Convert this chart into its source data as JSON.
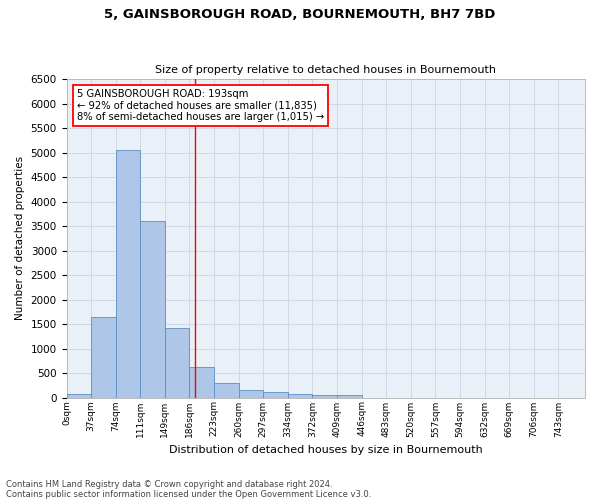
{
  "title": "5, GAINSBOROUGH ROAD, BOURNEMOUTH, BH7 7BD",
  "subtitle": "Size of property relative to detached houses in Bournemouth",
  "xlabel": "Distribution of detached houses by size in Bournemouth",
  "ylabel": "Number of detached properties",
  "footer_line1": "Contains HM Land Registry data © Crown copyright and database right 2024.",
  "footer_line2": "Contains public sector information licensed under the Open Government Licence v3.0.",
  "bin_labels": [
    "0sqm",
    "37sqm",
    "74sqm",
    "111sqm",
    "149sqm",
    "186sqm",
    "223sqm",
    "260sqm",
    "297sqm",
    "334sqm",
    "372sqm",
    "409sqm",
    "446sqm",
    "483sqm",
    "520sqm",
    "557sqm",
    "594sqm",
    "632sqm",
    "669sqm",
    "706sqm",
    "743sqm"
  ],
  "bar_values": [
    75,
    1650,
    5060,
    3600,
    1420,
    620,
    290,
    145,
    105,
    75,
    55,
    55,
    0,
    0,
    0,
    0,
    0,
    0,
    0,
    0
  ],
  "bar_color": "#aec6e8",
  "bar_edge_color": "#5a8fc2",
  "annotation_line1": "5 GAINSBOROUGH ROAD: 193sqm",
  "annotation_line2": "← 92% of detached houses are smaller (11,835)",
  "annotation_line3": "8% of semi-detached houses are larger (1,015) →",
  "vline_x": 193,
  "vline_color": "red",
  "ylim": [
    0,
    6500
  ],
  "xlim_min": 0,
  "xlim_max": 780,
  "bin_width": 37,
  "num_bins": 20,
  "grid_color": "#d0d8e8",
  "background_color": "#eaf0f8",
  "yticks": [
    0,
    500,
    1000,
    1500,
    2000,
    2500,
    3000,
    3500,
    4000,
    4500,
    5000,
    5500,
    6000,
    6500
  ]
}
